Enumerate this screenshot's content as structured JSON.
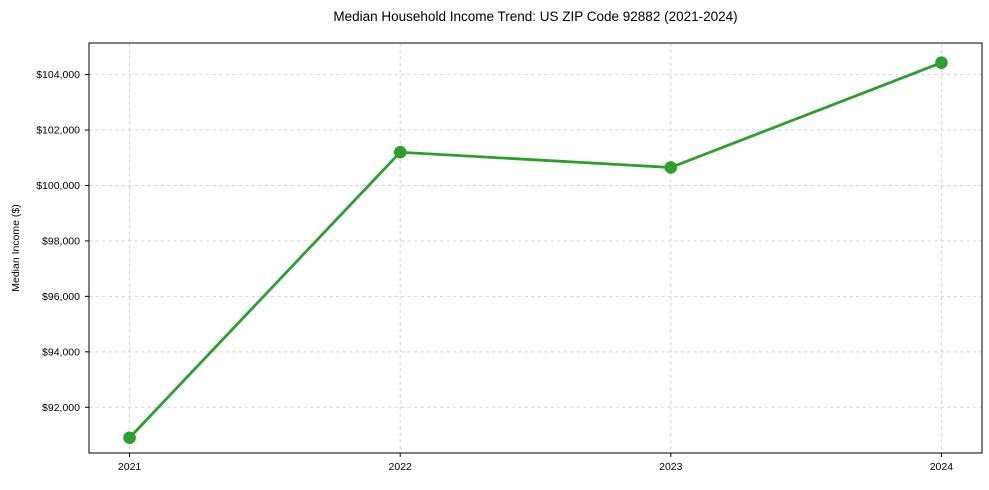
{
  "chart_data": {
    "type": "line",
    "title": "Median Household Income Trend: US ZIP Code 92882 (2021-2024)",
    "ylabel": "Median Income ($)",
    "xlabel": "",
    "x": [
      2021,
      2022,
      2023,
      2024
    ],
    "values": [
      90900,
      101200,
      100650,
      104430
    ],
    "xtick_labels": [
      "2021",
      "2022",
      "2023",
      "2024"
    ],
    "ytick_values": [
      92000,
      94000,
      96000,
      98000,
      100000,
      102000,
      104000
    ],
    "ytick_labels": [
      "$92,000",
      "$94,000",
      "$96,000",
      "$98,000",
      "$100,000",
      "$102,000",
      "$104,000"
    ],
    "ylim": [
      90350,
      105140
    ],
    "xlim": [
      2020.85,
      2024.15
    ],
    "grid": true,
    "grid_style": "dashed",
    "legend": "none",
    "marker": "circle",
    "line_color": "#2ca02c",
    "grid_color": "#d5d5d5",
    "spine_color": "#000000",
    "text_color": "#000000",
    "background_color": "#ffffff"
  }
}
